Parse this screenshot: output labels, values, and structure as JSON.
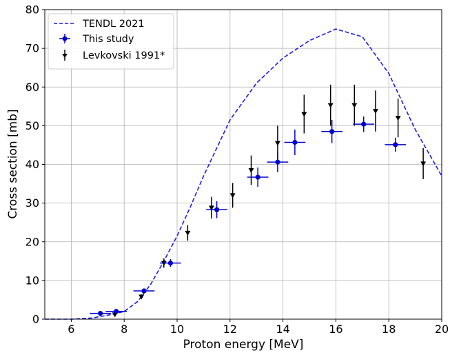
{
  "chart_data": {
    "type": "scatter",
    "xlabel": "Proton energy [MeV]",
    "ylabel": "Cross section [mb]",
    "xlim": [
      5,
      20
    ],
    "ylim": [
      0,
      80
    ],
    "xticks": [
      6,
      8,
      10,
      12,
      14,
      16,
      18,
      20
    ],
    "yticks": [
      0,
      10,
      20,
      30,
      40,
      50,
      60,
      70,
      80
    ],
    "grid": true,
    "legend_position": "top-left",
    "series": [
      {
        "name": "TENDL 2021",
        "kind": "line",
        "style": "dashed",
        "color": "#1a1aee",
        "x": [
          5.0,
          6.0,
          6.8,
          7.2,
          7.6,
          8.0,
          8.5,
          9.0,
          9.5,
          10.0,
          10.5,
          11.0,
          12.0,
          13.0,
          14.0,
          15.0,
          16.0,
          17.0,
          18.0,
          19.0,
          20.0
        ],
        "y": [
          0.0,
          0.0,
          0.3,
          0.8,
          1.3,
          2.0,
          4.5,
          9.0,
          15.0,
          21.5,
          29.0,
          37.0,
          51.5,
          61.0,
          67.5,
          72.0,
          75.0,
          73.0,
          63.5,
          49.0,
          37.0
        ]
      },
      {
        "name": "This study",
        "kind": "errorbar",
        "color": "#0000cc",
        "marker": "circle",
        "points": [
          {
            "x": 7.1,
            "y": 1.5,
            "xerr": 0.4,
            "yerr": 0.3
          },
          {
            "x": 7.7,
            "y": 2.0,
            "xerr": 0.4,
            "yerr": 0.4
          },
          {
            "x": 8.75,
            "y": 7.3,
            "xerr": 0.4,
            "yerr": 0.6
          },
          {
            "x": 9.75,
            "y": 14.5,
            "xerr": 0.4,
            "yerr": 1.0
          },
          {
            "x": 11.5,
            "y": 28.3,
            "xerr": 0.4,
            "yerr": 2.2
          },
          {
            "x": 13.05,
            "y": 36.7,
            "xerr": 0.4,
            "yerr": 2.5
          },
          {
            "x": 13.8,
            "y": 40.6,
            "xerr": 0.4,
            "yerr": 2.6
          },
          {
            "x": 14.45,
            "y": 45.7,
            "xerr": 0.4,
            "yerr": 3.3
          },
          {
            "x": 15.85,
            "y": 48.5,
            "xerr": 0.4,
            "yerr": 3.0
          },
          {
            "x": 17.05,
            "y": 50.4,
            "xerr": 0.4,
            "yerr": 2.0
          },
          {
            "x": 18.25,
            "y": 45.1,
            "xerr": 0.4,
            "yerr": 1.8
          }
        ]
      },
      {
        "name": "Levkovski 1991*",
        "kind": "errorbar",
        "color": "#000000",
        "marker": "triangle-down",
        "points": [
          {
            "x": 7.65,
            "y": 1.2,
            "yerr": 0.3
          },
          {
            "x": 8.65,
            "y": 5.8,
            "yerr": 0.6
          },
          {
            "x": 9.5,
            "y": 14.5,
            "yerr": 1.2
          },
          {
            "x": 10.4,
            "y": 22.3,
            "yerr": 2.0
          },
          {
            "x": 11.3,
            "y": 28.8,
            "yerr": 2.8
          },
          {
            "x": 12.1,
            "y": 32.0,
            "yerr": 3.2
          },
          {
            "x": 12.8,
            "y": 38.5,
            "yerr": 3.8
          },
          {
            "x": 13.8,
            "y": 45.5,
            "yerr": 4.5
          },
          {
            "x": 14.8,
            "y": 53.0,
            "yerr": 5.0
          },
          {
            "x": 15.8,
            "y": 55.3,
            "yerr": 5.3
          },
          {
            "x": 16.7,
            "y": 55.3,
            "yerr": 5.3
          },
          {
            "x": 17.5,
            "y": 53.8,
            "yerr": 5.3
          },
          {
            "x": 18.35,
            "y": 52.0,
            "yerr": 5.0
          },
          {
            "x": 19.3,
            "y": 40.2,
            "yerr": 4.0
          }
        ]
      }
    ]
  }
}
